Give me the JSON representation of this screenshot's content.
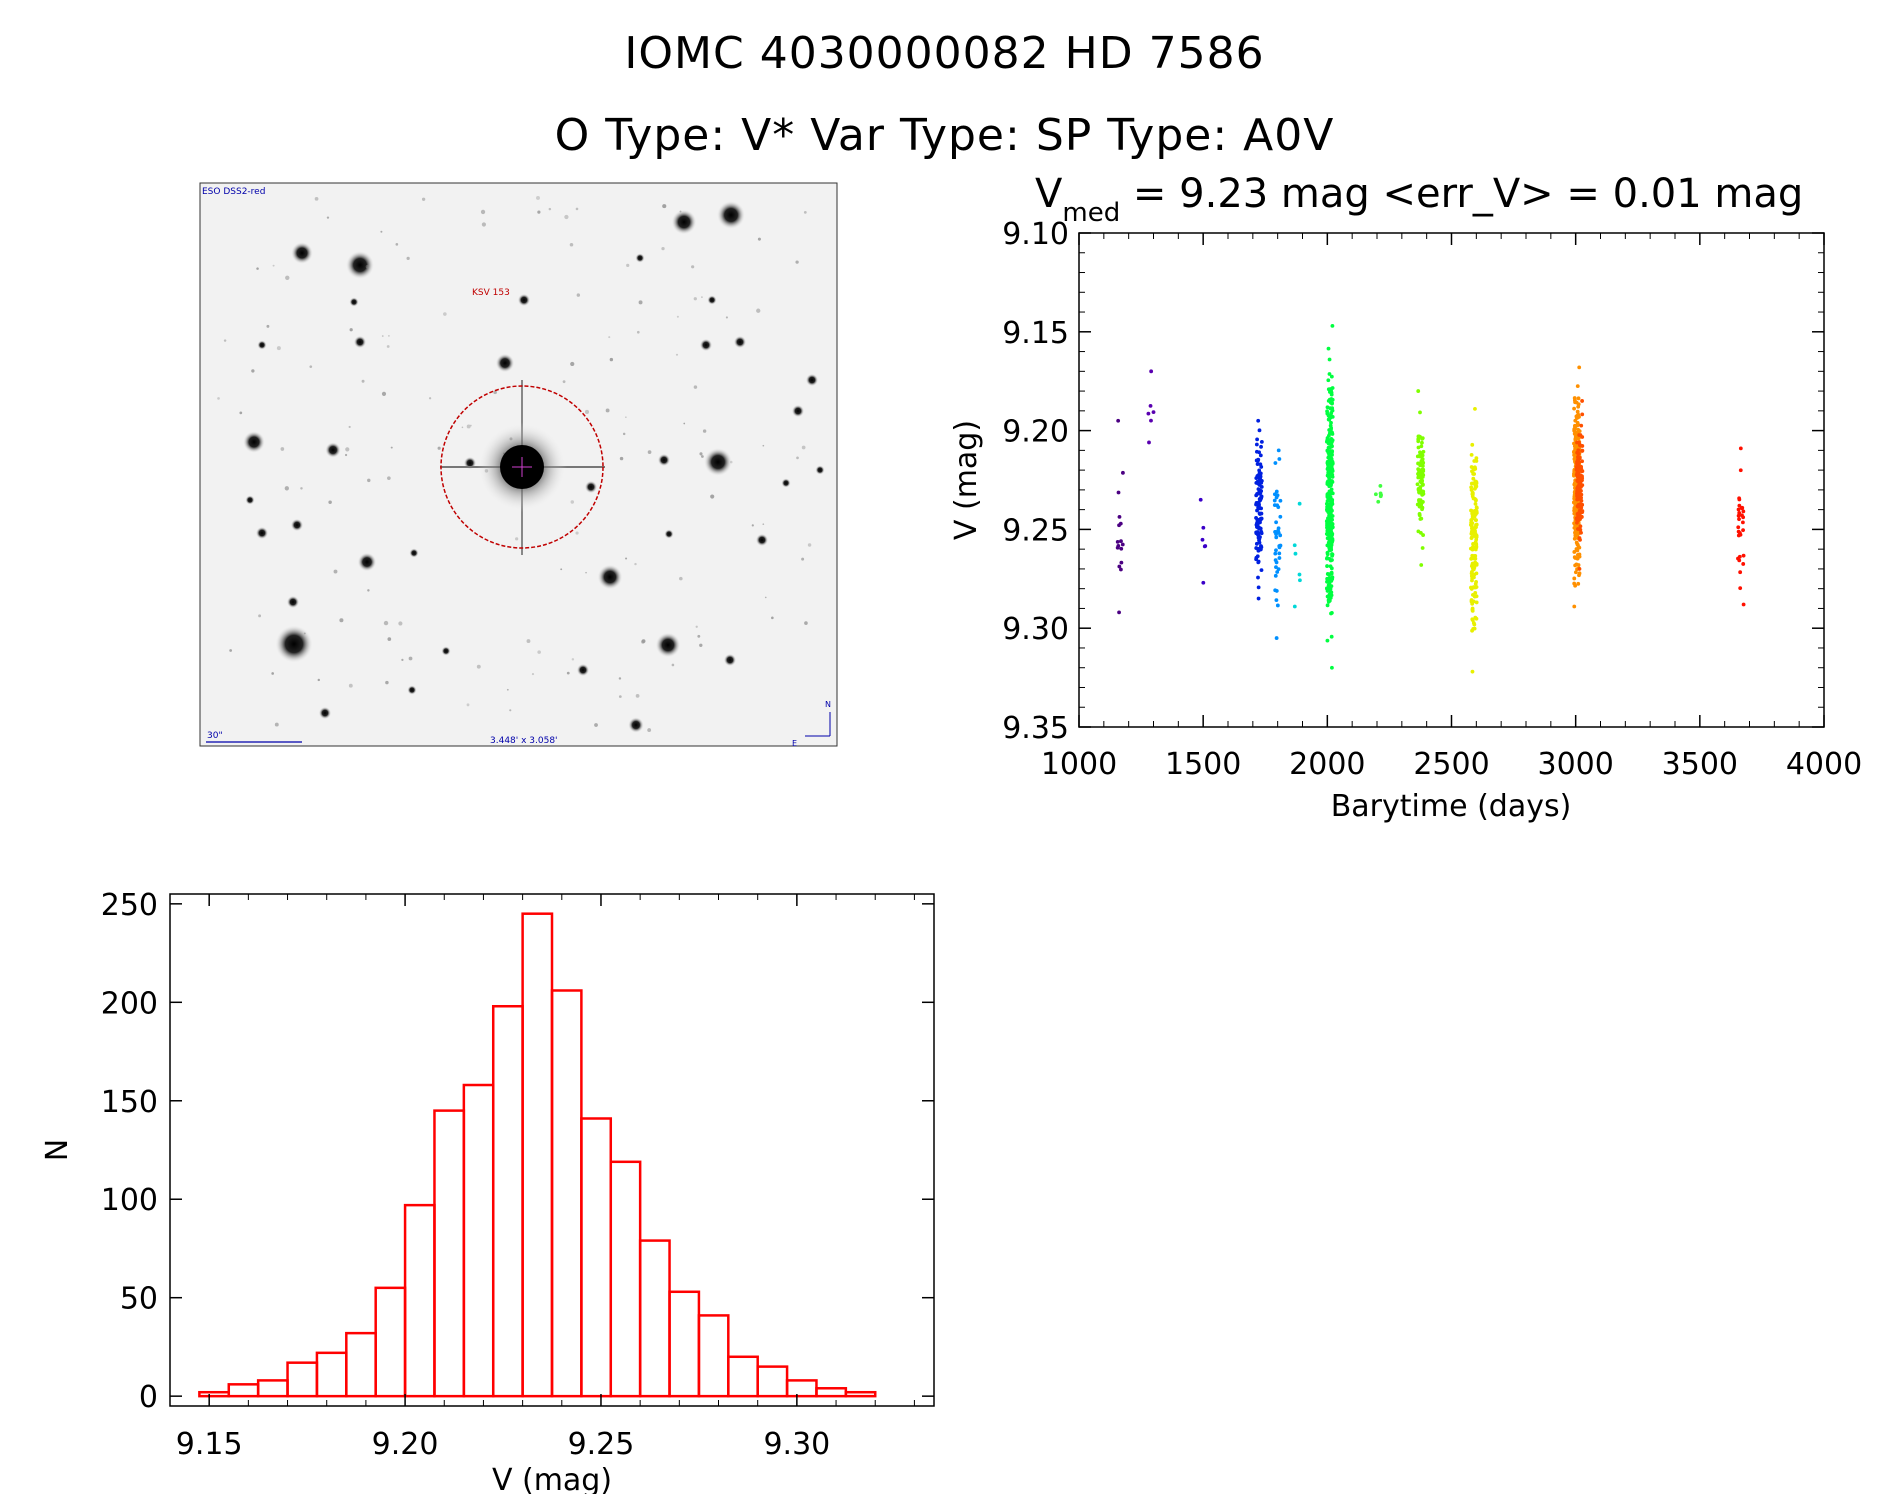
{
  "header": {
    "title": "IOMC 4030000082    HD    7586",
    "subtitle": "O Type: V*  Var Type:    SP Type: A0V"
  },
  "image_panel": {
    "corner_label": "ESO DSS2-red",
    "target_label": "KSV 153",
    "scale_label": "30\"",
    "fov_label": "3.448' x 3.058'",
    "north_label": "N",
    "east_label": "E"
  },
  "colors": {
    "histogram": "#ff0000",
    "circle": "#c00000",
    "lc_palette": [
      "#4b0082",
      "#3a00c8",
      "#0030ff",
      "#00a0ff",
      "#00e8c8",
      "#00ff00",
      "#a0ff00",
      "#ffff00",
      "#ffa000",
      "#ff5000",
      "#ff0000"
    ]
  },
  "chart_data": [
    {
      "type": "scatter",
      "title_main": "V",
      "title_sub": "med",
      "title_rest": " = 9.23 mag <err_V> = 0.01 mag",
      "xlabel": "Barytime (days)",
      "ylabel": "V (mag)",
      "xlim": [
        1000,
        4000
      ],
      "ylim": [
        9.1,
        9.35
      ],
      "y_inverted": true,
      "xticks": [
        1000,
        1500,
        2000,
        2500,
        3000,
        3500,
        4000
      ],
      "yticks": [
        "9.10",
        "9.15",
        "9.20",
        "9.25",
        "9.30",
        "9.35"
      ],
      "yticks_values": [
        9.1,
        9.15,
        9.2,
        9.25,
        9.3,
        9.35
      ],
      "clusters": [
        {
          "x": 1165,
          "ymin": 9.195,
          "ymax": 9.292,
          "n": 16,
          "color": "#4b0082"
        },
        {
          "x": 1290,
          "ymin": 9.17,
          "ymax": 9.206,
          "n": 6,
          "color": "#5a00b0"
        },
        {
          "x": 1500,
          "ymin": 9.235,
          "ymax": 9.277,
          "n": 6,
          "color": "#3a00c8"
        },
        {
          "x": 1725,
          "ymin": 9.195,
          "ymax": 9.285,
          "n": 120,
          "color": "#0020e0"
        },
        {
          "x": 1800,
          "ymin": 9.21,
          "ymax": 9.305,
          "n": 40,
          "color": "#0090ff"
        },
        {
          "x": 1880,
          "ymin": 9.237,
          "ymax": 9.289,
          "n": 6,
          "color": "#00d8d8"
        },
        {
          "x": 2010,
          "ymin": 9.147,
          "ymax": 9.32,
          "n": 320,
          "color": "#00ff40"
        },
        {
          "x": 2205,
          "ymin": 9.228,
          "ymax": 9.236,
          "n": 6,
          "color": "#40ff40"
        },
        {
          "x": 2375,
          "ymin": 9.18,
          "ymax": 9.268,
          "n": 90,
          "color": "#80ff00"
        },
        {
          "x": 2590,
          "ymin": 9.189,
          "ymax": 9.322,
          "n": 150,
          "color": "#e8f000"
        },
        {
          "x": 3005,
          "ymin": 9.168,
          "ymax": 9.289,
          "n": 280,
          "color": "#ff9000"
        },
        {
          "x": 3015,
          "ymin": 9.185,
          "ymax": 9.27,
          "n": 120,
          "color": "#ff5000"
        },
        {
          "x": 3665,
          "ymin": 9.209,
          "ymax": 9.288,
          "n": 30,
          "color": "#ff1000"
        }
      ]
    },
    {
      "type": "bar",
      "xlabel": "V (mag)",
      "ylabel": "N",
      "xlim": [
        9.14,
        9.335
      ],
      "ylim": [
        -5,
        255
      ],
      "xticks": [
        "9.15",
        "9.20",
        "9.25",
        "9.30"
      ],
      "xticks_values": [
        9.15,
        9.2,
        9.25,
        9.3
      ],
      "yticks": [
        "0",
        "50",
        "100",
        "150",
        "200",
        "250"
      ],
      "yticks_values": [
        0,
        50,
        100,
        150,
        200,
        250
      ],
      "bin_start": 9.1475,
      "bin_width": 0.0075,
      "values": [
        2,
        6,
        8,
        17,
        22,
        32,
        55,
        97,
        145,
        158,
        198,
        245,
        206,
        141,
        119,
        79,
        53,
        41,
        20,
        15,
        8,
        4,
        2
      ]
    }
  ]
}
